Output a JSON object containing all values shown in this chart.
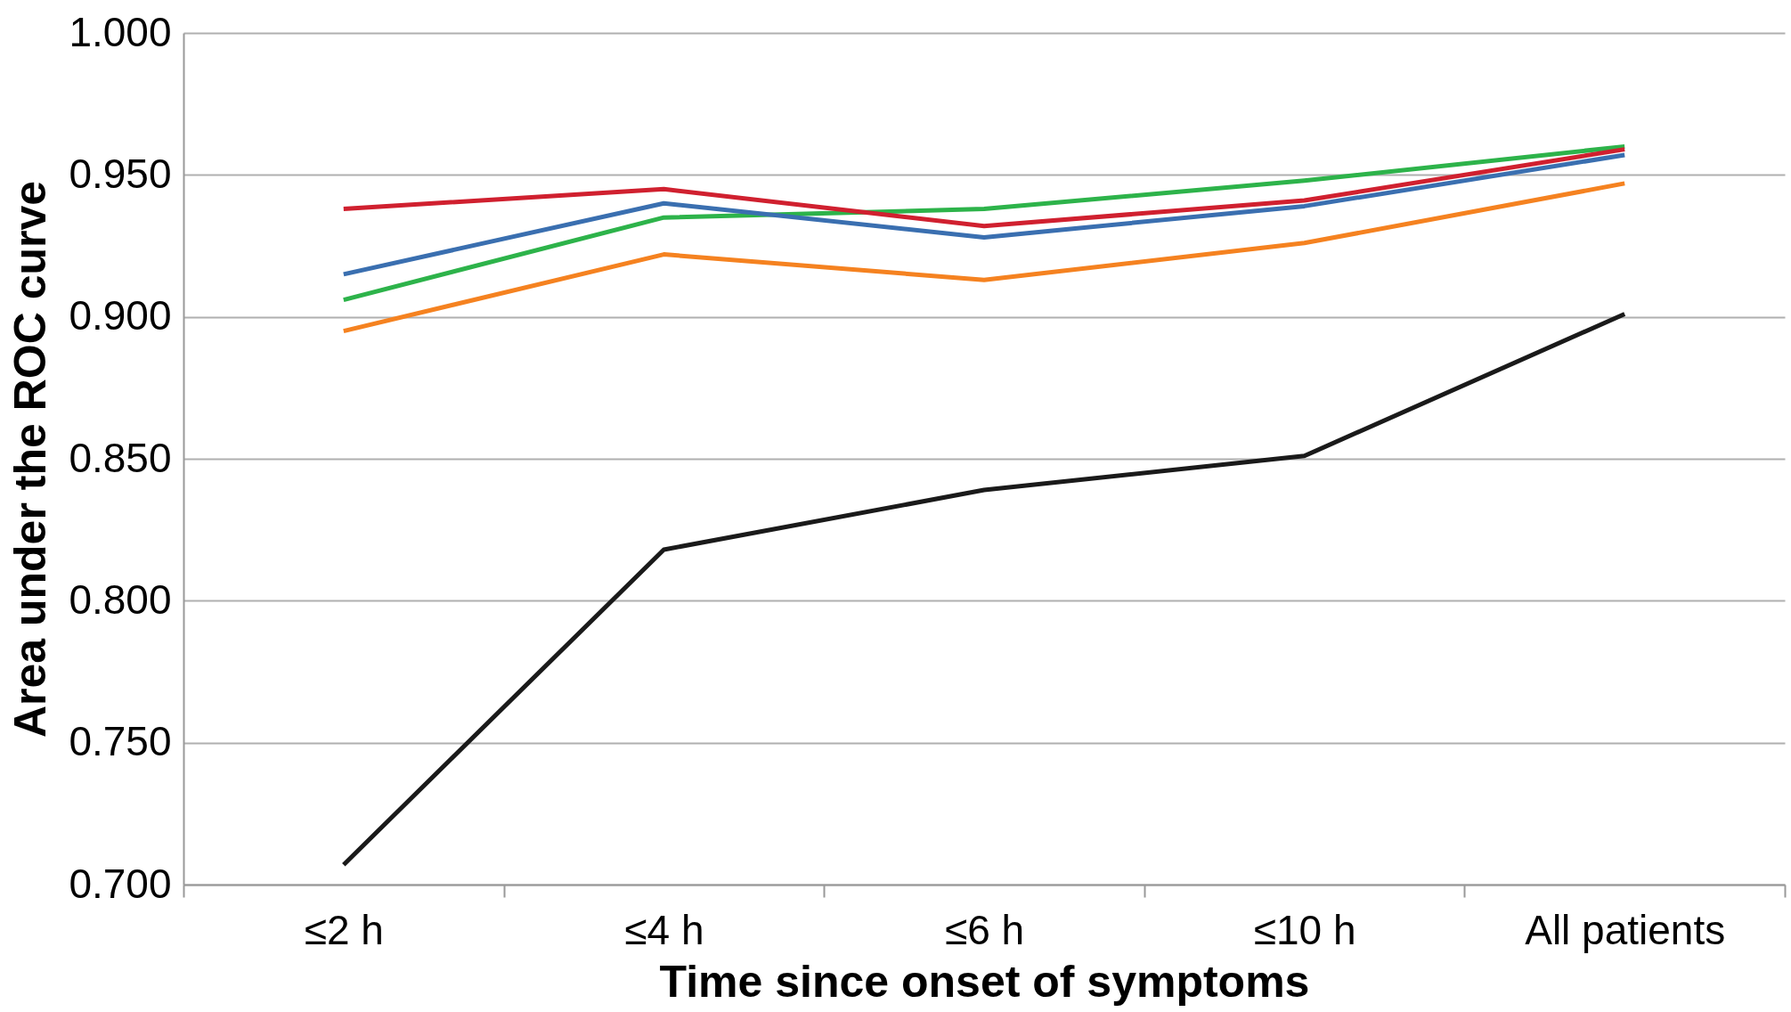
{
  "chart_data": {
    "type": "line",
    "xlabel": "Time since onset of symptoms",
    "ylabel": "Area under the ROC curve",
    "categories": [
      "≤2 h",
      "≤4 h",
      "≤6 h",
      "≤10 h",
      "All patients"
    ],
    "series": [
      {
        "color": "#1a1a1a",
        "values": [
          0.707,
          0.818,
          0.839,
          0.851,
          0.901
        ]
      },
      {
        "color": "#f58220",
        "values": [
          0.895,
          0.922,
          0.913,
          0.926,
          0.947
        ]
      },
      {
        "color": "#2db34a",
        "values": [
          0.906,
          0.935,
          0.938,
          0.948,
          0.96
        ]
      },
      {
        "color": "#3a6fb0",
        "values": [
          0.915,
          0.94,
          0.928,
          0.939,
          0.957
        ]
      },
      {
        "color": "#d0202f",
        "values": [
          0.938,
          0.945,
          0.932,
          0.941,
          0.959
        ]
      }
    ],
    "ylim": [
      0.7,
      1.0
    ],
    "yticks": [
      {
        "value": 0.7,
        "label": "0.700"
      },
      {
        "value": 0.75,
        "label": "0.750"
      },
      {
        "value": 0.8,
        "label": "0.800"
      },
      {
        "value": 0.85,
        "label": "0.850"
      },
      {
        "value": 0.9,
        "label": "0.900"
      },
      {
        "value": 0.95,
        "label": "0.950"
      },
      {
        "value": 1.0,
        "label": "1.000"
      }
    ],
    "grid": "y",
    "legend": false,
    "marker": "none",
    "line_style": "solid"
  }
}
